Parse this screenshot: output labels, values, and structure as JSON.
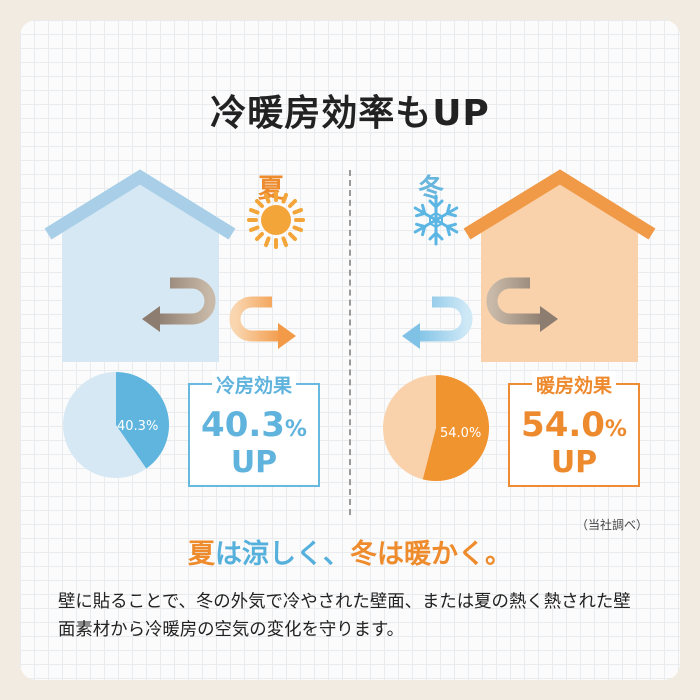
{
  "title": "冷暖房効率もUP",
  "summer": {
    "label": "夏",
    "pie_value_label": "40.3%",
    "pie_fraction": 0.403,
    "effect_label": "冷房効果",
    "effect_value": "40.3",
    "effect_unit": "%",
    "effect_up": "UP"
  },
  "winter": {
    "label": "冬",
    "pie_value_label": "54.0%",
    "pie_fraction": 0.54,
    "effect_label": "暖房効果",
    "effect_value": "54.0",
    "effect_unit": "%",
    "effect_up": "UP"
  },
  "source_note": "（当社調べ）",
  "slogan": {
    "part1": "夏",
    "part2": "は涼しく、",
    "part3": "冬",
    "part4": "は暖かく。"
  },
  "body_text": "壁に貼ることで、冬の外気で冷やされた壁面、または夏の熱く熱された壁面素材から冷暖房の空気の変化を守ります。",
  "colors": {
    "summer_accent": "#ee8b2c",
    "winter_accent": "#68b5de",
    "cool_house": "#d6e8f4",
    "cool_roof": "#a9cfe8",
    "warm_house": "#f9d2ab",
    "warm_roof": "#f09a48"
  },
  "icons": {
    "summer": "sun-icon",
    "winter": "snowflake-icon",
    "airflow": "u-turn-arrow-icon"
  }
}
